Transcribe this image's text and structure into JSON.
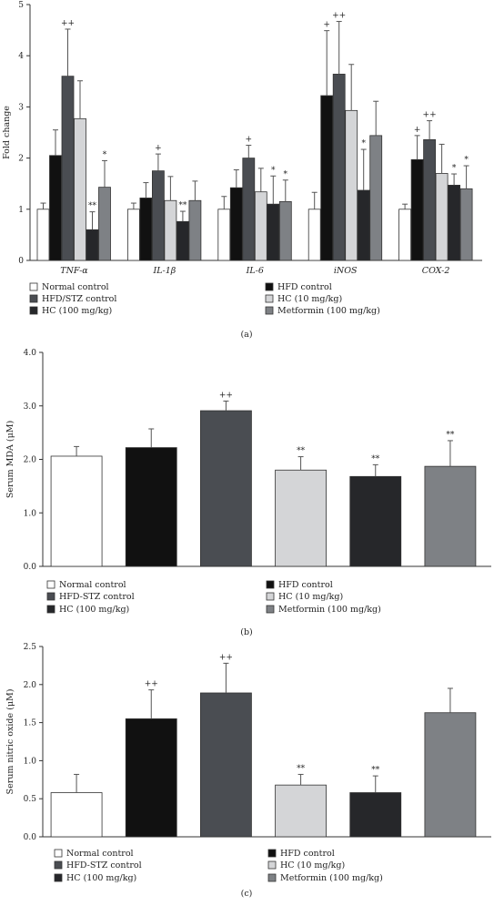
{
  "colors": {
    "normal": "#ffffff",
    "hfd": "#111111",
    "hfd_stz": "#4a4d52",
    "hc10": "#d4d5d7",
    "hc100": "#26272a",
    "metformin": "#7e8185",
    "axis": "#333333",
    "errorbar": "#555555"
  },
  "chart_data": [
    {
      "type": "bar",
      "panel_label": "(a)",
      "ylabel": "Fold change",
      "ylim": [
        0,
        5
      ],
      "yticks": [
        "0",
        "1",
        "2",
        "3",
        "4",
        "5"
      ],
      "grid": false,
      "legend_position": "bottom",
      "categories": [
        "TNF-α",
        "IL-1β",
        "IL-6",
        "iNOS",
        "COX-2"
      ],
      "series": [
        {
          "name": "Normal control",
          "color_key": "normal",
          "values": [
            1.0,
            1.0,
            1.0,
            1.0,
            1.0
          ],
          "errors": [
            0.12,
            0.12,
            0.25,
            0.33,
            0.1
          ],
          "marks": [
            "",
            "",
            "",
            "",
            ""
          ]
        },
        {
          "name": "HFD control",
          "color_key": "hfd",
          "values": [
            2.05,
            1.22,
            1.42,
            3.22,
            1.97
          ],
          "errors": [
            0.5,
            0.3,
            0.35,
            1.27,
            0.47
          ],
          "marks": [
            "",
            "",
            "",
            "+",
            "+"
          ]
        },
        {
          "name": "HFD/STZ control",
          "color_key": "hfd_stz",
          "values": [
            3.6,
            1.75,
            2.0,
            3.64,
            2.36
          ],
          "errors": [
            0.92,
            0.33,
            0.25,
            1.03,
            0.37
          ],
          "marks": [
            "++",
            "+",
            "+",
            "++",
            "++"
          ]
        },
        {
          "name": "HC (10 mg/kg)",
          "color_key": "hc10",
          "values": [
            2.77,
            1.17,
            1.34,
            2.93,
            1.7
          ],
          "errors": [
            0.74,
            0.47,
            0.46,
            0.9,
            0.57
          ],
          "marks": [
            "",
            "",
            "",
            "",
            ""
          ]
        },
        {
          "name": "HC (100 mg/kg)",
          "color_key": "hc100",
          "values": [
            0.6,
            0.76,
            1.1,
            1.37,
            1.47
          ],
          "errors": [
            0.35,
            0.2,
            0.55,
            0.8,
            0.22
          ],
          "marks": [
            "**",
            "**",
            "*",
            "*",
            "*"
          ]
        },
        {
          "name": "Metformin (100 mg/kg)",
          "color_key": "metformin",
          "values": [
            1.43,
            1.17,
            1.15,
            2.44,
            1.4
          ],
          "errors": [
            0.52,
            0.38,
            0.42,
            0.67,
            0.45
          ],
          "marks": [
            "*",
            "",
            "*",
            "",
            "*"
          ]
        }
      ]
    },
    {
      "type": "bar",
      "panel_label": "(b)",
      "ylabel": "Serum MDA (μM)",
      "ylim": [
        0,
        4
      ],
      "yticks": [
        "0.0",
        "1.0",
        "2.0",
        "3.0",
        "4.0"
      ],
      "grid": false,
      "legend_position": "bottom",
      "categories": [
        "Normal control",
        "HFD control",
        "HFD-STZ control",
        "HC (10 mg/kg)",
        "HC (100 mg/kg)",
        "Metformin (100 mg/kg)"
      ],
      "color_keys": [
        "normal",
        "hfd",
        "hfd_stz",
        "hc10",
        "hc100",
        "metformin"
      ],
      "values": [
        2.06,
        2.22,
        2.91,
        1.8,
        1.68,
        1.87
      ],
      "errors": [
        0.18,
        0.35,
        0.18,
        0.25,
        0.22,
        0.48
      ],
      "marks": [
        "",
        "",
        "++",
        "**",
        "**",
        "**"
      ]
    },
    {
      "type": "bar",
      "panel_label": "(c)",
      "ylabel": "Serum nitric oxide (μM)",
      "ylim": [
        0,
        2.5
      ],
      "yticks": [
        "0.0",
        "0.5",
        "1.0",
        "1.5",
        "2.0",
        "2.5"
      ],
      "grid": false,
      "legend_position": "bottom",
      "categories": [
        "Normal control",
        "HFD control",
        "HFD-STZ control",
        "HC (10 mg/kg)",
        "HC (100 mg/kg)",
        "Metformin (100 mg/kg)"
      ],
      "color_keys": [
        "normal",
        "hfd",
        "hfd_stz",
        "hc10",
        "hc100",
        "metformin"
      ],
      "values": [
        0.58,
        1.55,
        1.89,
        0.68,
        0.58,
        1.63
      ],
      "errors": [
        0.24,
        0.38,
        0.39,
        0.14,
        0.22,
        0.32
      ],
      "marks": [
        "",
        "++",
        "++",
        "**",
        "**",
        ""
      ]
    }
  ]
}
